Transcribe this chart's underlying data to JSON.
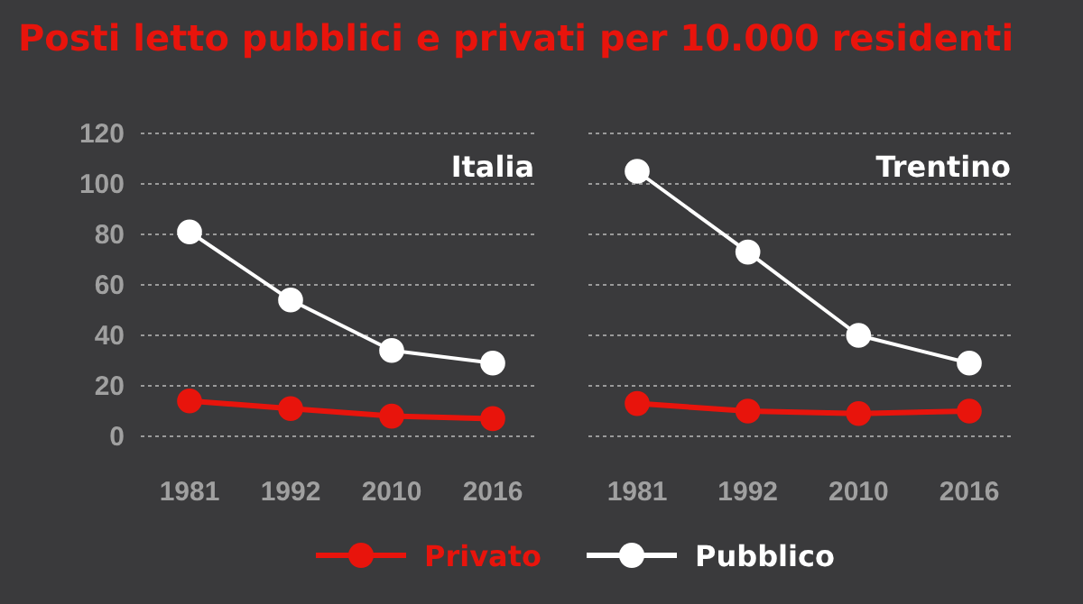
{
  "chart_data": [
    {
      "type": "line",
      "title": "Posti letto pubblici e privati per 10.000 residenti",
      "subtitle": "Italia",
      "categories": [
        "1981",
        "1992",
        "2010",
        "2016"
      ],
      "series": [
        {
          "name": "Privato",
          "color": "#e8140c",
          "values": [
            14,
            11,
            8,
            7
          ]
        },
        {
          "name": "Pubblico",
          "color": "#ffffff",
          "values": [
            81,
            54,
            34,
            29
          ]
        }
      ],
      "ylim": [
        0,
        120
      ],
      "yticks": [
        0,
        20,
        40,
        60,
        80,
        100,
        120
      ],
      "grid": "y",
      "marker": "circle",
      "legend": "bottom"
    },
    {
      "type": "line",
      "title": "Trentino",
      "categories": [
        "1981",
        "1992",
        "2010",
        "2016"
      ],
      "series": [
        {
          "color": "#e8140c",
          "values": [
            13,
            10,
            9,
            10
          ]
        },
        {
          "color": "#ffffff",
          "values": [
            105,
            73,
            40,
            29
          ]
        }
      ],
      "ylim": [
        0,
        120
      ],
      "yticks": [
        0,
        20,
        40,
        60,
        80,
        100,
        120
      ],
      "grid": "y",
      "marker": "circle",
      "tick_labels": "x"
    }
  ]
}
